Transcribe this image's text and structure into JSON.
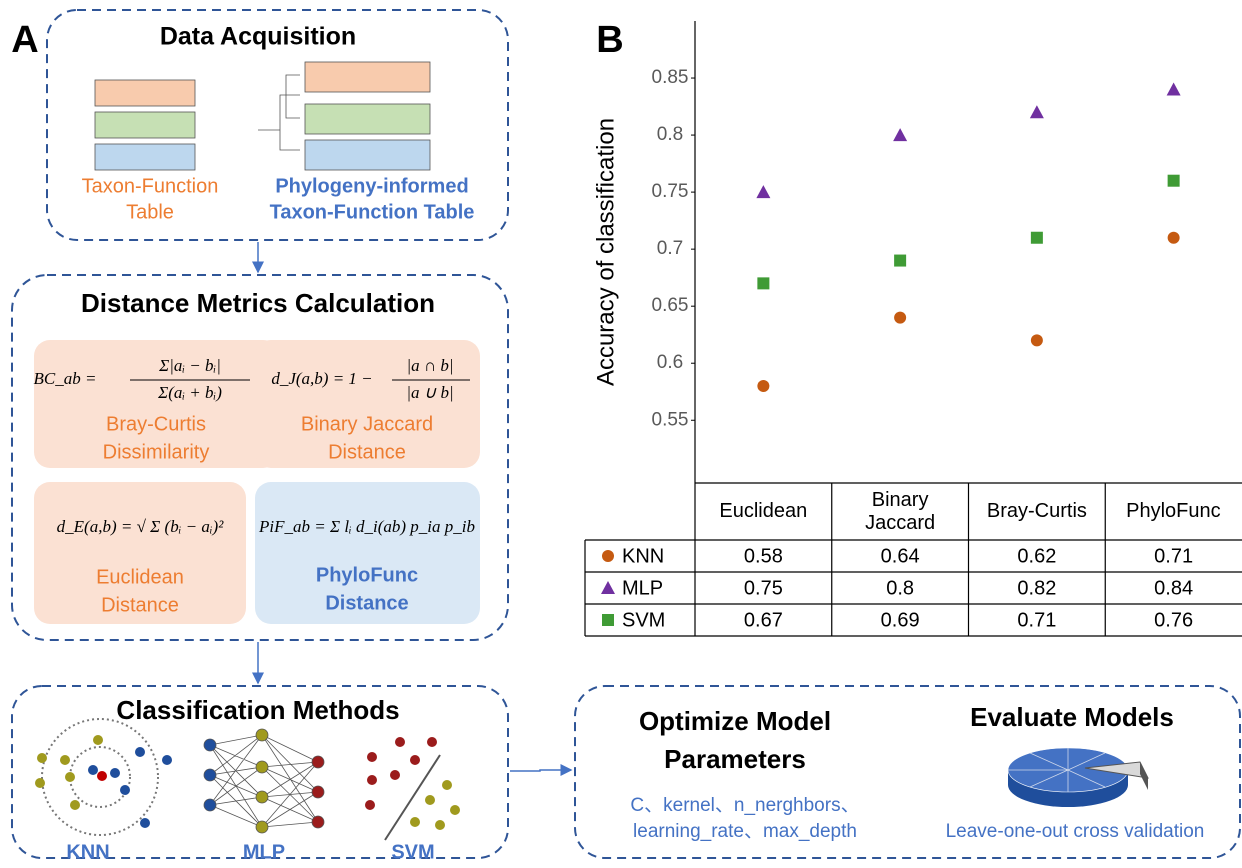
{
  "panel_a": {
    "label": "A",
    "data_acquisition": {
      "title": "Data Acquisition",
      "taxon_function_table": [
        "Taxon-Function",
        "Table"
      ],
      "phylogeny_table": [
        "Phylogeny-informed",
        "Taxon-Function Table"
      ]
    },
    "distance_metrics": {
      "title": "Distance Metrics Calculation",
      "metrics": [
        {
          "lhs": "BC_ab =",
          "num": "Σ|aᵢ − bᵢ|",
          "den": "Σ(aᵢ + bᵢ)",
          "name": [
            "Bray-Curtis",
            "Dissimilarity"
          ]
        },
        {
          "lhs": "d_J(a,b) = 1 −",
          "num": "|a ∩ b|",
          "den": "|a ∪ b|",
          "name": [
            "Binary Jaccard",
            "Distance"
          ]
        },
        {
          "lhs": "d_E(a,b) = √ Σ (bᵢ − aᵢ)²",
          "name": [
            "Euclidean",
            "Distance"
          ]
        },
        {
          "lhs": "PiF_ab = Σ lᵢ d_i(ab) p_ia p_ib",
          "name": [
            "PhyloFunc",
            "Distance"
          ]
        }
      ]
    },
    "classification": {
      "title": "Classification Methods",
      "methods": [
        "KNN",
        "MLP",
        "SVM"
      ]
    },
    "optimize": {
      "title": [
        "Optimize Model",
        "Parameters"
      ],
      "params": [
        "C、kernel、n_nerghbors、",
        "learning_rate、max_depth"
      ]
    },
    "evaluate": {
      "title": "Evaluate Models",
      "method": "Leave-one-out cross validation"
    }
  },
  "chart_data": {
    "type": "scatter",
    "label": "B",
    "ylabel": "Accuracy of classification",
    "categories": [
      "Euclidean",
      "Binary Jaccard",
      "Bray-Curtis",
      "PhyloFunc"
    ],
    "series": [
      {
        "name": "KNN",
        "color": "#c55a11",
        "marker": "circle",
        "values": [
          0.58,
          0.64,
          0.62,
          0.71
        ]
      },
      {
        "name": "MLP",
        "color": "#7030a0",
        "marker": "triangle",
        "values": [
          0.75,
          0.8,
          0.82,
          0.84
        ]
      },
      {
        "name": "SVM",
        "color": "#3f9b35",
        "marker": "square",
        "values": [
          0.67,
          0.69,
          0.71,
          0.76
        ]
      }
    ],
    "ylim": [
      0.495,
      0.9
    ],
    "yticks": [
      0.55,
      0.6,
      0.65,
      0.7,
      0.75,
      0.8,
      0.85
    ],
    "data_table": true
  }
}
